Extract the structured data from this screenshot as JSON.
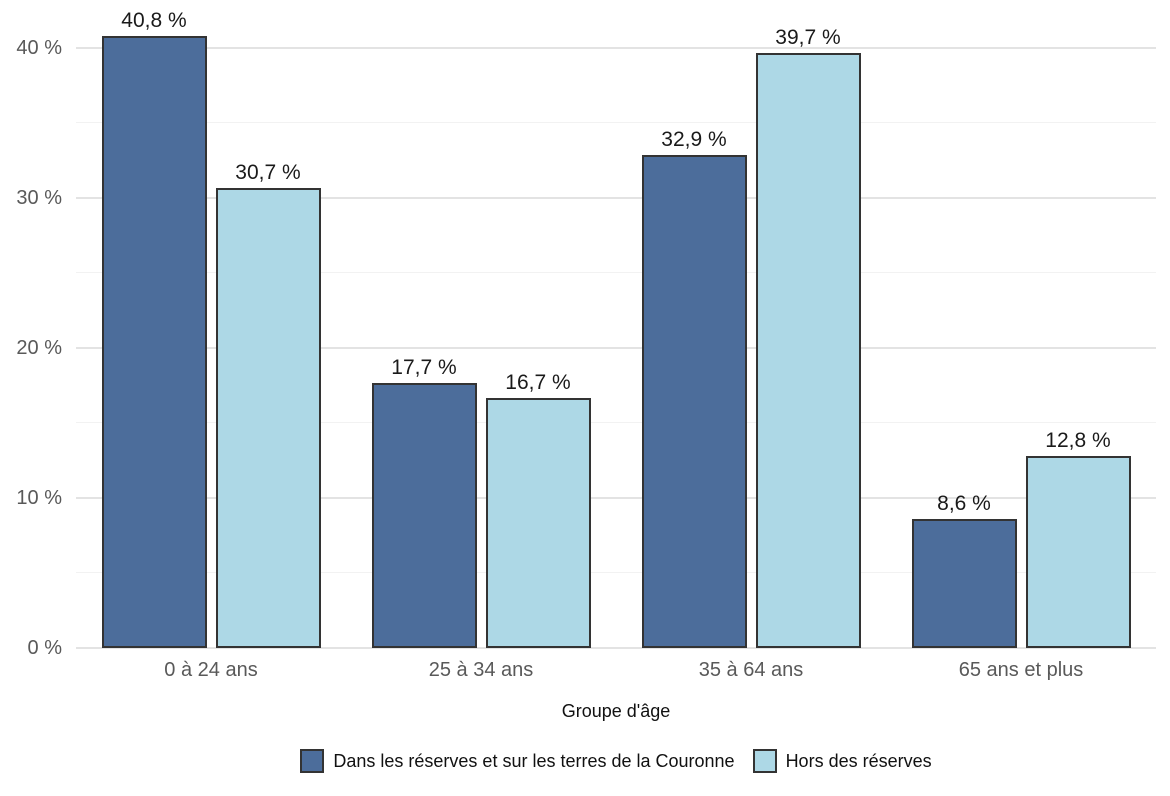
{
  "colors": {
    "series_dark": "#4c6d9b",
    "series_light": "#add8e6",
    "bar_border": "#333333",
    "grid_major": "#e3e3e3",
    "grid_minor": "#f2f2f2",
    "axis_text": "#595959",
    "value_label_text": "#1a1a1a"
  },
  "chart_data": {
    "type": "bar",
    "title": "",
    "xlabel": "Groupe d'âge",
    "ylabel": "",
    "categories": [
      "0 à 24 ans",
      "25 à 34 ans",
      "35 à 64 ans",
      "65 ans et plus"
    ],
    "series": [
      {
        "name": "Dans les réserves et sur les terres de la Couronne",
        "color": "#4c6d9b",
        "values": [
          40.8,
          17.7,
          32.9,
          8.6
        ],
        "value_labels": [
          "40,8 %",
          "17,7 %",
          "32,9 %",
          "8,6 %"
        ]
      },
      {
        "name": "Hors des réserves",
        "color": "#add8e6",
        "values": [
          30.7,
          16.7,
          39.7,
          12.8
        ],
        "value_labels": [
          "30,7 %",
          "16,7 %",
          "39,7 %",
          "12,8 %"
        ]
      }
    ],
    "y_axis": {
      "ticks": [
        {
          "value": 0,
          "label": "0 %"
        },
        {
          "value": 10,
          "label": "10 %"
        },
        {
          "value": 20,
          "label": "20 %"
        },
        {
          "value": 30,
          "label": "30 %"
        },
        {
          "value": 40,
          "label": "40 %"
        }
      ],
      "minor_ticks": [
        5,
        15,
        25,
        35
      ],
      "range": [
        0,
        43.2
      ],
      "grid": true
    },
    "legend_position": "bottom"
  }
}
